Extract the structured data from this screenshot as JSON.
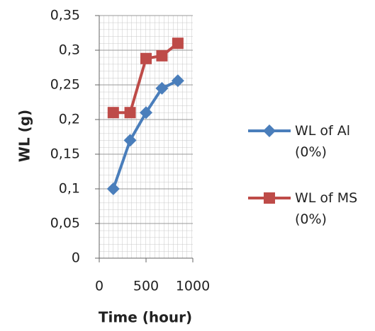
{
  "chart_data": {
    "type": "line",
    "x_label": "Time (hour)",
    "y_label": "WL (g)",
    "xlim": [
      0,
      1000
    ],
    "xticks": [
      0,
      500,
      1000
    ],
    "ylim": [
      0,
      0.35
    ],
    "yticks": [
      0,
      {
        "value": 0.05,
        "label": "0,05"
      },
      {
        "value": 0.1,
        "label": "0,1"
      },
      {
        "value": 0.15,
        "label": "0,15"
      },
      {
        "value": 0.2,
        "label": "0,2"
      },
      {
        "value": 0.25,
        "label": "0,25"
      },
      {
        "value": 0.3,
        "label": "0,3"
      },
      {
        "value": 0.35,
        "label": "0,35"
      }
    ],
    "grid": true,
    "legend": "right",
    "series": [
      {
        "name": "WL of Al (0%)",
        "color": "#4a7ebb",
        "marker": "diamond",
        "x": [
          150,
          330,
          500,
          670,
          840
        ],
        "values": [
          0.1,
          0.17,
          0.21,
          0.245,
          0.256
        ]
      },
      {
        "name": "WL of MS (0%)",
        "color": "#be4b48",
        "marker": "square",
        "x": [
          150,
          330,
          500,
          670,
          840
        ],
        "values": [
          0.21,
          0.21,
          0.288,
          0.292,
          0.31
        ]
      }
    ]
  }
}
